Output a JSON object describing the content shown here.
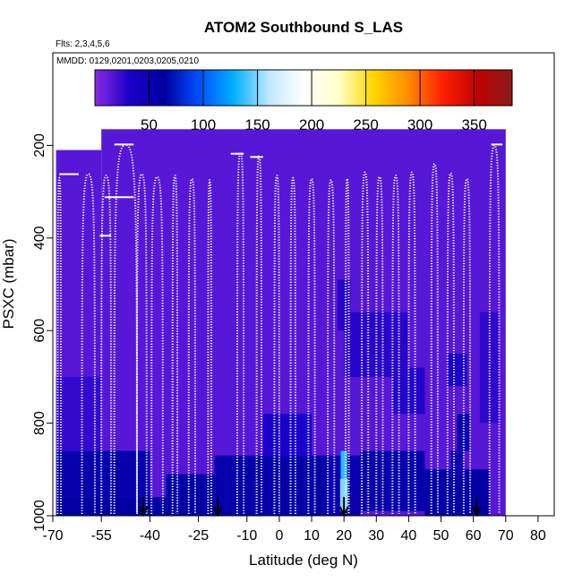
{
  "chart_data": {
    "type": "heatmap",
    "title": "ATOM2 Southbound S_LAS",
    "flights_label": "Flts: 2,3,4,5,6",
    "dates_label": "MMDD: 0129,0201,0203,0205,0210",
    "xlabel": "Latitude (deg N)",
    "ylabel": "PSXC (mbar)",
    "xlim": [
      -70,
      85
    ],
    "ylim": [
      1000,
      0
    ],
    "x_ticks": [
      -70,
      -55,
      -40,
      -25,
      -10,
      0,
      10,
      20,
      30,
      40,
      50,
      60,
      70,
      80
    ],
    "y_ticks": [
      200,
      400,
      600,
      800,
      1000
    ],
    "colorbar": {
      "range": [
        0,
        385
      ],
      "ticks": [
        50,
        100,
        150,
        200,
        250,
        300,
        350
      ],
      "colors": [
        "#8a2be2",
        "#1a00c8",
        "#0000a0",
        "#0050ff",
        "#00b0ff",
        "#bfe8ff",
        "#ffffff",
        "#ffffc8",
        "#ffd700",
        "#ff8c00",
        "#ff2000",
        "#c00000",
        "#8b1a1a"
      ]
    },
    "background_value": 15,
    "curtain": {
      "top_pressure": 165,
      "left_lat": -55,
      "left_panel": {
        "lat_range": [
          -69,
          -55
        ],
        "top_pressure": 210
      },
      "right_lat": 70,
      "bottom_pressure": 1000
    },
    "cells": [
      {
        "lat": [
          -69,
          -40
        ],
        "p": [
          860,
          960
        ],
        "value": 55
      },
      {
        "lat": [
          -69,
          -20
        ],
        "p": [
          960,
          1000
        ],
        "value": 62
      },
      {
        "lat": [
          -35,
          -20
        ],
        "p": [
          910,
          960
        ],
        "value": 65
      },
      {
        "lat": [
          -20,
          15
        ],
        "p": [
          870,
          1000
        ],
        "value": 58
      },
      {
        "lat": [
          -5,
          10
        ],
        "p": [
          780,
          870
        ],
        "value": 32
      },
      {
        "lat": [
          15,
          25
        ],
        "p": [
          870,
          1000
        ],
        "value": 52
      },
      {
        "lat": [
          25,
          45
        ],
        "p": [
          860,
          990
        ],
        "value": 55
      },
      {
        "lat": [
          45,
          65
        ],
        "p": [
          900,
          1000
        ],
        "value": 60
      },
      {
        "lat": [
          35,
          45
        ],
        "p": [
          680,
          780
        ],
        "value": 30
      },
      {
        "lat": [
          53,
          57
        ],
        "p": [
          860,
          920
        ],
        "value": 45
      },
      {
        "lat": [
          55,
          59
        ],
        "p": [
          780,
          860
        ],
        "value": 50
      },
      {
        "lat": [
          52,
          58
        ],
        "p": [
          650,
          720
        ],
        "value": 32
      },
      {
        "lat": [
          18,
          22
        ],
        "p": [
          490,
          600
        ],
        "value": 28
      },
      {
        "lat": [
          -69,
          -55
        ],
        "p": [
          700,
          860
        ],
        "value": 25
      },
      {
        "lat": [
          20,
          40
        ],
        "p": [
          560,
          700
        ],
        "value": 28
      },
      {
        "lat": [
          62,
          68
        ],
        "p": [
          560,
          800
        ],
        "value": 26
      },
      {
        "lat": [
          19,
          21
        ],
        "p": [
          860,
          990
        ],
        "value": 135
      },
      {
        "lat": [
          18.8,
          21.2
        ],
        "p": [
          920,
          990
        ],
        "value": 150
      }
    ],
    "profiles": [
      {
        "lat": [
          -68.5,
          -67.5
        ],
        "top": 270
      },
      {
        "lat": [
          -61,
          -57
        ],
        "top": 262
      },
      {
        "lat": [
          -55,
          -52
        ],
        "top": 265
      },
      {
        "lat": [
          -51,
          -44
        ],
        "top": 198
      },
      {
        "lat": [
          -44,
          -41
        ],
        "top": 262
      },
      {
        "lat": [
          -39.5,
          -36
        ],
        "top": 268
      },
      {
        "lat": [
          -33,
          -31.5
        ],
        "top": 265
      },
      {
        "lat": [
          -28,
          -26
        ],
        "top": 272
      },
      {
        "lat": [
          -22,
          -21
        ],
        "top": 275
      },
      {
        "lat": [
          -13,
          -11
        ],
        "top": 215
      },
      {
        "lat": [
          -7,
          -5.5
        ],
        "top": 222
      },
      {
        "lat": [
          -1.5,
          0
        ],
        "top": 265
      },
      {
        "lat": [
          3.5,
          5
        ],
        "top": 270
      },
      {
        "lat": [
          9,
          11
        ],
        "top": 272
      },
      {
        "lat": [
          15,
          17
        ],
        "top": 275
      },
      {
        "lat": [
          20.5,
          21.5
        ],
        "top": 272
      },
      {
        "lat": [
          25.5,
          27.5
        ],
        "top": 258
      },
      {
        "lat": [
          30,
          32
        ],
        "top": 268
      },
      {
        "lat": [
          35,
          37
        ],
        "top": 265
      },
      {
        "lat": [
          40,
          42
        ],
        "top": 258
      },
      {
        "lat": [
          47,
          49
        ],
        "top": 240
      },
      {
        "lat": [
          52,
          54
        ],
        "top": 260
      },
      {
        "lat": [
          57,
          59
        ],
        "top": 272
      },
      {
        "lat": [
          65,
          68
        ],
        "top": 200
      }
    ],
    "transects": [
      {
        "lat": [
          -68,
          -62
        ],
        "p": 262
      },
      {
        "lat": [
          -55.5,
          -52
        ],
        "p": 395
      },
      {
        "lat": [
          -54,
          -45
        ],
        "p": 312
      },
      {
        "lat": [
          -51,
          -45
        ],
        "p": 198
      },
      {
        "lat": [
          -15,
          -11
        ],
        "p": 218
      },
      {
        "lat": [
          -9,
          -5
        ],
        "p": 225
      },
      {
        "lat": [
          65.5,
          69
        ],
        "p": 198
      }
    ],
    "arrows": [
      -42,
      -19,
      20,
      61
    ]
  }
}
